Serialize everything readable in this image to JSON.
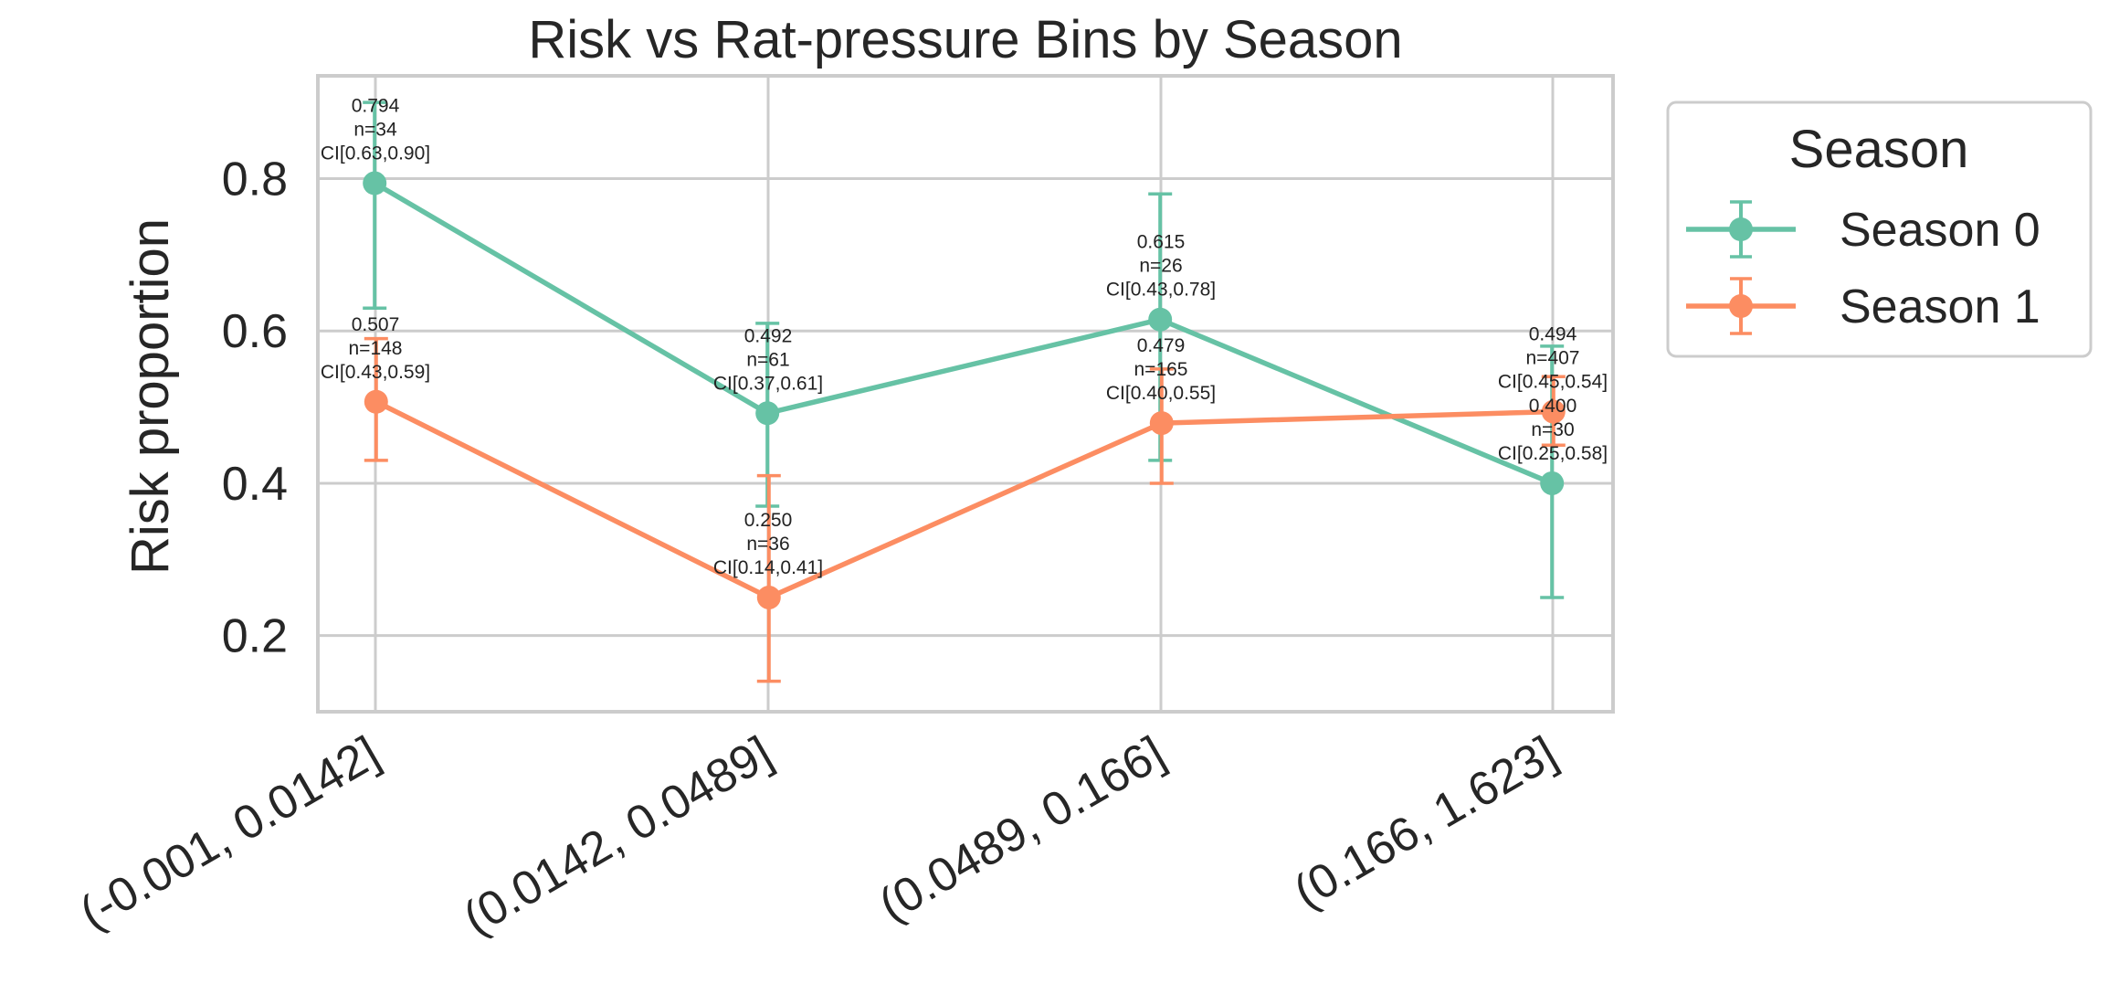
{
  "chart_data": {
    "type": "line",
    "title": "Risk vs Rat-pressure Bins by Season",
    "xlabel": "",
    "ylabel": "Risk proportion",
    "categories": [
      "(-0.001, 0.0142]",
      "(0.0142, 0.0489]",
      "(0.0489, 0.166]",
      "(0.166, 1.623]"
    ],
    "ylim": [
      0.1,
      0.935
    ],
    "yticks": [
      0.2,
      0.4,
      0.6,
      0.8
    ],
    "ytick_labels": [
      "0.2",
      "0.4",
      "0.6",
      "0.8"
    ],
    "grid": true,
    "legend": {
      "title": "Season",
      "position": "outside-right"
    },
    "series": [
      {
        "name": "Season 0",
        "color": "#66c2a5",
        "values": [
          0.794,
          0.492,
          0.615,
          0.4
        ],
        "ci_low": [
          0.63,
          0.37,
          0.43,
          0.25
        ],
        "ci_high": [
          0.9,
          0.61,
          0.78,
          0.58
        ],
        "n": [
          34,
          61,
          26,
          30
        ],
        "labels": [
          [
            "0.794",
            "n=34",
            "CI[0.63,0.90]"
          ],
          [
            "0.492",
            "n=61",
            "CI[0.37,0.61]"
          ],
          [
            "0.615",
            "n=26",
            "CI[0.43,0.78]"
          ],
          [
            "0.400",
            "n=30",
            "CI[0.25,0.58]"
          ]
        ]
      },
      {
        "name": "Season 1",
        "color": "#fc8d62",
        "values": [
          0.507,
          0.25,
          0.479,
          0.494
        ],
        "ci_low": [
          0.43,
          0.14,
          0.4,
          0.45
        ],
        "ci_high": [
          0.59,
          0.41,
          0.55,
          0.54
        ],
        "n": [
          148,
          36,
          165,
          407
        ],
        "labels": [
          [
            "0.507",
            "n=148",
            "CI[0.43,0.59]"
          ],
          [
            "0.250",
            "n=36",
            "CI[0.14,0.41]"
          ],
          [
            "0.479",
            "n=165",
            "CI[0.40,0.55]"
          ],
          [
            "0.494",
            "n=407",
            "CI[0.45,0.54]"
          ]
        ]
      }
    ]
  }
}
